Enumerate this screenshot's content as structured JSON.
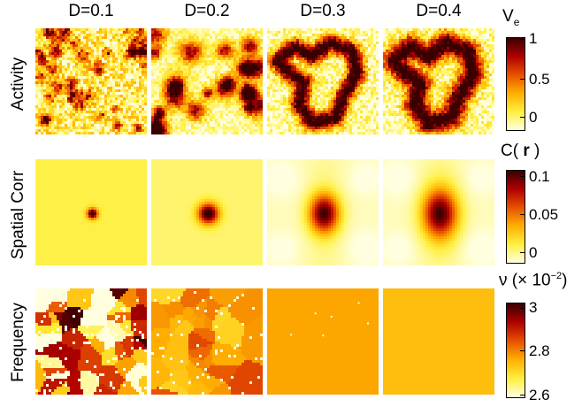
{
  "figure": {
    "columns": [
      "D=0.1",
      "D=0.2",
      "D=0.3",
      "D=0.4"
    ],
    "rows": [
      "Activity",
      "Spatial Corr",
      "Frequency"
    ],
    "colorbars": [
      {
        "title": "V",
        "title_sub": "e",
        "ticks": [
          "1",
          "0.5",
          "0"
        ]
      },
      {
        "title_pre": "C(",
        "title_bold": "r",
        "title_post": ")",
        "ticks": [
          "0.1",
          "0.05",
          "0"
        ]
      },
      {
        "title_pre": "ν (× 10",
        "title_sup": "−2",
        "title_post": ")",
        "ticks": [
          "3",
          "2.8",
          "2.6"
        ]
      }
    ],
    "colormap": [
      "#ffffe0",
      "#ffef40",
      "#ffb000",
      "#e85000",
      "#b00000",
      "#3a0000"
    ]
  }
}
